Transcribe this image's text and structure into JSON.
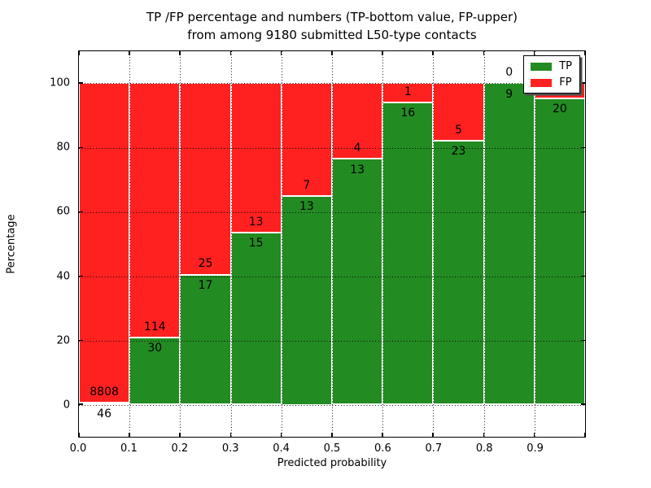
{
  "title": {
    "line1": "TP /FP percentage and numbers (TP-bottom value, FP-upper)",
    "line2": "from among 9180 submitted L50-type contacts"
  },
  "axes": {
    "xlabel": "Predicted probability",
    "ylabel": "Percentage",
    "x_tick_labels": [
      "0.0",
      "0.1",
      "0.2",
      "0.3",
      "0.4",
      "0.5",
      "0.6",
      "0.7",
      "0.8",
      "0.9"
    ],
    "y_tick_labels": [
      "0",
      "20",
      "40",
      "60",
      "80",
      "100"
    ],
    "y_tick_values": [
      0,
      20,
      40,
      60,
      80,
      100
    ],
    "ylim": [
      -10,
      110
    ],
    "xlim": [
      0,
      1
    ],
    "grid": "dotted black, horizontal at y ticks and vertical at each 0.1"
  },
  "legend": {
    "position": "upper right, white box with black border and shadow",
    "items": [
      {
        "label": "TP",
        "color": "#228b22"
      },
      {
        "label": "FP",
        "color": "#ff2020"
      }
    ]
  },
  "chart_data": {
    "type": "bar",
    "stacked": true,
    "title": "TP /FP percentage and numbers (TP-bottom value, FP-upper) from among 9180 submitted L50-type contacts",
    "xlabel": "Predicted probability",
    "ylabel": "Percentage",
    "total_submitted_contacts": 9180,
    "categories": [
      "0.0-0.1",
      "0.1-0.2",
      "0.2-0.3",
      "0.3-0.4",
      "0.4-0.5",
      "0.5-0.6",
      "0.6-0.7",
      "0.7-0.8",
      "0.8-0.9",
      "0.9-1.0"
    ],
    "bin_width": 0.1,
    "series": [
      {
        "name": "TP",
        "color": "#228b22",
        "counts": [
          46,
          30,
          17,
          15,
          13,
          13,
          16,
          23,
          9,
          20
        ]
      },
      {
        "name": "FP",
        "color": "#ff2020",
        "counts": [
          8808,
          114,
          25,
          13,
          7,
          4,
          1,
          5,
          0,
          null
        ]
      }
    ],
    "tp_percent": [
      0.52,
      20.83,
      40.48,
      53.57,
      65.0,
      76.47,
      94.12,
      82.14,
      100.0,
      95.24
    ],
    "fp_count_label_hidden_behind_legend_for_last_bin": true,
    "ylim": [
      -10,
      110
    ],
    "legend_entries": [
      "TP",
      "FP"
    ]
  }
}
